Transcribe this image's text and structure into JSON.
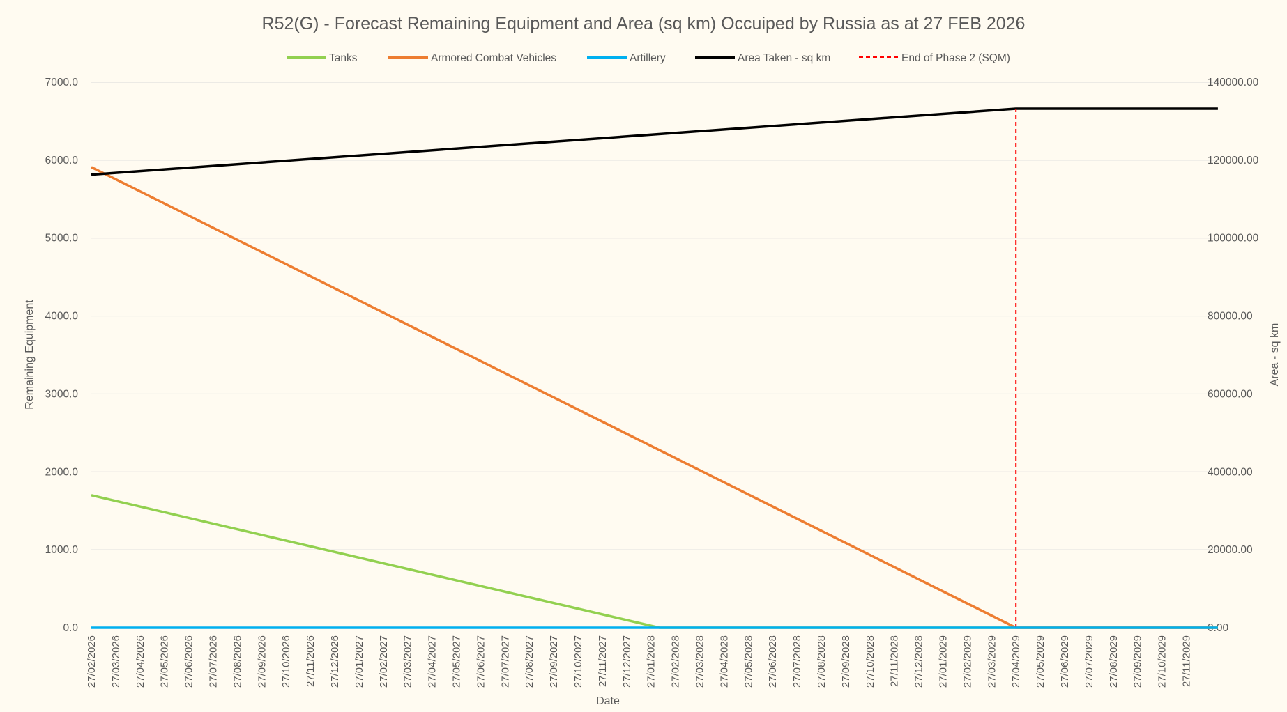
{
  "chart_data": {
    "type": "line",
    "title": "R52(G) - Forecast Remaining Equipment and Area (sq km) Occuiped by Russia as at 27 FEB 2026",
    "xlabel": "Date",
    "ylabel": "Remaining Equipment",
    "y2label": "Area - sq km",
    "ylim": [
      0,
      7000
    ],
    "y2lim": [
      0,
      140000
    ],
    "grid": true,
    "legend_position": "top",
    "yticks": [
      "0.0",
      "1000.0",
      "2000.0",
      "3000.0",
      "4000.0",
      "5000.0",
      "6000.0",
      "7000.0"
    ],
    "y2ticks": [
      "0.00",
      "20000.00",
      "40000.00",
      "60000.00",
      "80000.00",
      "100000.00",
      "120000.00",
      "140000.00"
    ],
    "categories": [
      "27/02/2026",
      "27/03/2026",
      "27/04/2026",
      "27/05/2026",
      "27/06/2026",
      "27/07/2026",
      "27/08/2026",
      "27/09/2026",
      "27/10/2026",
      "27/11/2026",
      "27/12/2026",
      "27/01/2027",
      "27/02/2027",
      "27/03/2027",
      "27/04/2027",
      "27/05/2027",
      "27/06/2027",
      "27/07/2027",
      "27/08/2027",
      "27/09/2027",
      "27/10/2027",
      "27/11/2027",
      "27/12/2027",
      "27/01/2028",
      "27/02/2028",
      "27/03/2028",
      "27/04/2028",
      "27/05/2028",
      "27/06/2028",
      "27/07/2028",
      "27/08/2028",
      "27/09/2028",
      "27/10/2028",
      "27/11/2028",
      "27/12/2028",
      "27/01/2029",
      "27/02/2029",
      "27/03/2029",
      "27/04/2029",
      "27/05/2029",
      "27/06/2029",
      "27/07/2029",
      "27/08/2029",
      "27/09/2029",
      "27/10/2029",
      "27/11/2029"
    ],
    "x_end_index": 46.3,
    "series": [
      {
        "name": "Tanks",
        "axis": "left",
        "color": "#92D050",
        "style": "solid",
        "points": [
          [
            0,
            1700
          ],
          [
            23.35,
            0
          ],
          [
            46.3,
            0
          ]
        ]
      },
      {
        "name": "Armored Combat Vehicles",
        "axis": "left",
        "color": "#ED7D31",
        "style": "solid",
        "points": [
          [
            0,
            5910
          ],
          [
            38,
            0
          ],
          [
            46.3,
            0
          ]
        ]
      },
      {
        "name": "Artillery",
        "axis": "left",
        "color": "#00B0F0",
        "style": "solid",
        "points": [
          [
            0,
            0
          ],
          [
            46.3,
            0
          ]
        ]
      },
      {
        "name": "Area Taken - sq km",
        "axis": "right",
        "color": "#000000",
        "style": "solid",
        "points": [
          [
            0,
            116300
          ],
          [
            38,
            133200
          ],
          [
            46.3,
            133200
          ]
        ]
      },
      {
        "name": "End of Phase 2 (SQM)",
        "axis": "right",
        "color": "#FF0000",
        "style": "dashed",
        "points": [
          [
            38,
            0
          ],
          [
            38,
            133200
          ]
        ]
      }
    ]
  }
}
